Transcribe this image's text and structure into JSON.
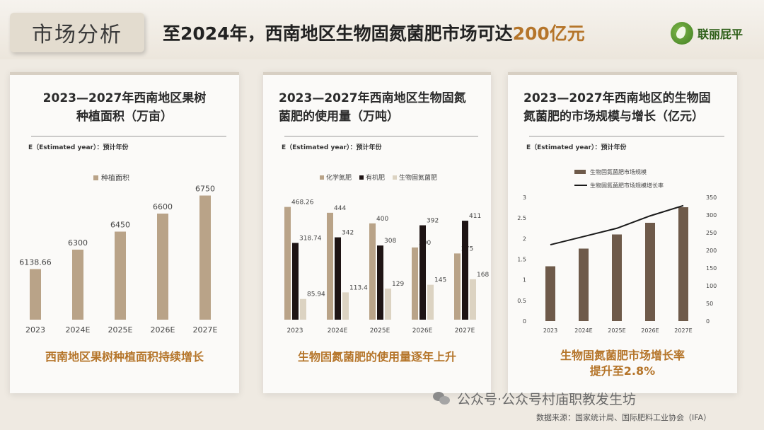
{
  "header": {
    "section_label": "市场分析",
    "headline_prefix": "至2024年，西南地区生物固氮菌肥市场可达",
    "headline_highlight": "200亿元",
    "logo_text": "联丽屁平",
    "accent_color": "#b5752a"
  },
  "panels": [
    {
      "title_line1": "2023—2027年西南地区果树",
      "title_line2": "种植面积（万亩）",
      "est_note": "E（Estimated year）：预计年份",
      "conclusion": "西南地区果树种植面积持续增长"
    },
    {
      "title_line1": "2023—2027年西南地区生物固氮",
      "title_line2": "菌肥的使用量（万吨）",
      "est_note": "E（Estimated year）：预计年份",
      "conclusion": "生物固氮菌肥的使用量逐年上升"
    },
    {
      "title_line1": "2023—2027年西南地区的生物固",
      "title_line2": "氮菌肥的市场规模与增长（亿元）",
      "est_note": "E（Estimated year）：预计年份",
      "conclusion_line1": "生物固氮菌肥市场增长率",
      "conclusion_line2": "提升至2.8%"
    }
  ],
  "chart_data": [
    {
      "type": "bar",
      "categories": [
        "2023",
        "2024E",
        "2025E",
        "2026E",
        "2027E"
      ],
      "series": [
        {
          "name": "种植面积",
          "values": [
            6138.66,
            6300,
            6450,
            6600,
            6750
          ],
          "color": "#b9a388"
        }
      ],
      "data_labels": [
        "6138.66",
        "6300",
        "6450",
        "6600",
        "6750"
      ],
      "legend_position": "top-left",
      "grid": false
    },
    {
      "type": "bar",
      "categories": [
        "2023",
        "2024E",
        "2025E",
        "2026E",
        "2027E"
      ],
      "series": [
        {
          "name": "化学氮肥",
          "values": [
            468.26,
            444,
            400,
            300,
            275
          ],
          "labels": [
            "468.26",
            "444",
            "400",
            "300",
            "275"
          ],
          "color": "#b9a388"
        },
        {
          "name": "有机肥",
          "values": [
            318.74,
            342,
            308,
            392,
            411
          ],
          "labels": [
            "318.74",
            "342",
            "308",
            "392",
            "411"
          ],
          "color": "#1e1414"
        },
        {
          "name": "生物固氮菌肥",
          "values": [
            85.94,
            113.4,
            129,
            145,
            168
          ],
          "labels": [
            "85.94",
            "113.4",
            "129",
            "145",
            "168"
          ],
          "color": "#dcd3c2"
        }
      ],
      "legend_position": "top",
      "grid": false
    },
    {
      "type": "bar",
      "categories": [
        "2023",
        "2024E",
        "2025E",
        "2026E",
        "2027E"
      ],
      "series": [
        {
          "name": "生物固氮菌肥市场规模",
          "values": [
            155,
            205,
            245,
            278,
            322
          ],
          "color": "#6e5a4a",
          "axis": "right"
        },
        {
          "name": "生物固氮菌肥市场规模增长率",
          "values": [
            1.85,
            2.05,
            2.25,
            2.55,
            2.8
          ],
          "color": "#1a1a1a",
          "type": "line",
          "axis": "left"
        }
      ],
      "y_left": {
        "ticks": [
          "0",
          "0.5",
          "1",
          "1.5",
          "2",
          "2.5",
          "3"
        ],
        "ylim": [
          0,
          3
        ]
      },
      "y_right": {
        "ticks": [
          "0",
          "50",
          "100",
          "150",
          "200",
          "250",
          "300",
          "350"
        ],
        "ylim": [
          0,
          350
        ]
      },
      "legend_position": "top",
      "grid": false
    }
  ],
  "footer": {
    "watermark": "公众号·公众号村庙职教发生坊",
    "source": "数据来源：国家统计局、国际肥料工业协会（IFA）"
  }
}
